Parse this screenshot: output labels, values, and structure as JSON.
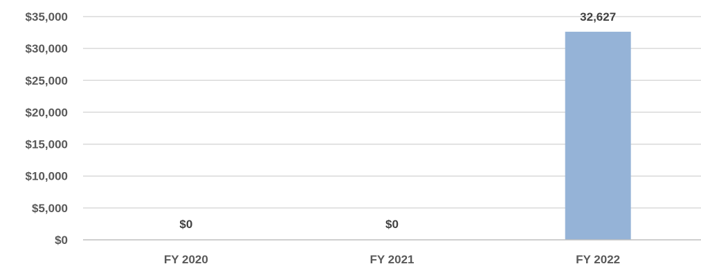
{
  "chart_data": {
    "type": "bar",
    "categories": [
      "FY 2020",
      "FY 2021",
      "FY 2022"
    ],
    "values": [
      0,
      0,
      32627
    ],
    "data_labels": [
      "$0",
      "$0",
      "32,627"
    ],
    "ylim": [
      0,
      35000
    ],
    "y_ticks": [
      0,
      5000,
      10000,
      15000,
      20000,
      25000,
      30000,
      35000
    ],
    "y_tick_labels": [
      "$0",
      "$5,000",
      "$10,000",
      "$15,000",
      "$20,000",
      "$25,000",
      "$30,000",
      "$35,000"
    ],
    "grid": true,
    "legend": "none",
    "title": "",
    "xlabel": "",
    "ylabel": "",
    "colors": {
      "bar": "#95b3d7",
      "grid": "#d9d9d9",
      "axis": "#bfbfbf",
      "text": "#595959"
    }
  }
}
